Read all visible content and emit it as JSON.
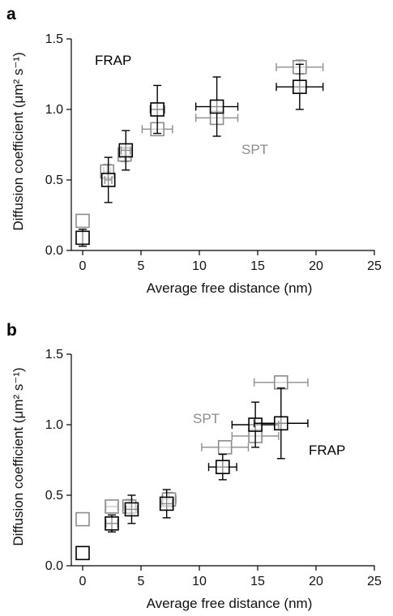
{
  "chart_data": [
    {
      "type": "scatter",
      "panel": "a",
      "xlabel": "Average free distance (nm)",
      "ylabel": "Diffusion coefficient (μm² s⁻¹)",
      "xlim": [
        0,
        25
      ],
      "ylim": [
        0.0,
        1.5
      ],
      "x_ticks": [
        "0",
        "5",
        "10",
        "15",
        "20",
        "25"
      ],
      "y_ticks": [
        "0.0",
        "0.5",
        "1.0",
        "1.5"
      ],
      "grid": false,
      "series": [
        {
          "name": "FRAP",
          "color": "#000000",
          "points": [
            {
              "x": 0.0,
              "y": 0.09,
              "yerr": 0.06,
              "xerr": 0.0
            },
            {
              "x": 2.2,
              "y": 0.5,
              "yerr": 0.16,
              "xerr": 0.3
            },
            {
              "x": 3.7,
              "y": 0.71,
              "yerr": 0.14,
              "xerr": 0.4
            },
            {
              "x": 6.4,
              "y": 1.0,
              "yerr": 0.17,
              "xerr": 0.6
            },
            {
              "x": 11.5,
              "y": 1.02,
              "yerr": 0.21,
              "xerr": 1.8
            },
            {
              "x": 18.6,
              "y": 1.16,
              "yerr": 0.16,
              "xerr": 2.0
            }
          ]
        },
        {
          "name": "SPT",
          "color": "#8c8c8c",
          "points": [
            {
              "x": 0.0,
              "y": 0.21,
              "yerr": 0.0,
              "xerr": 0.0
            },
            {
              "x": 2.1,
              "y": 0.56,
              "yerr": 0.05,
              "xerr": 0.3
            },
            {
              "x": 3.6,
              "y": 0.68,
              "yerr": 0.05,
              "xerr": 0.4
            },
            {
              "x": 6.4,
              "y": 0.86,
              "yerr": 0.0,
              "xerr": 1.3
            },
            {
              "x": 11.5,
              "y": 0.94,
              "yerr": 0.0,
              "xerr": 1.8
            },
            {
              "x": 18.6,
              "y": 1.3,
              "yerr": 0.05,
              "xerr": 2.0
            }
          ]
        }
      ],
      "annotations": [
        {
          "text": "FRAP",
          "color": "#000000"
        },
        {
          "text": "SPT",
          "color": "#8c8c8c"
        }
      ]
    },
    {
      "type": "scatter",
      "panel": "b",
      "xlabel": "Average free distance (nm)",
      "ylabel": "Diffusion coefficient (μm² s⁻¹)",
      "xlim": [
        0,
        25
      ],
      "ylim": [
        0.0,
        1.5
      ],
      "x_ticks": [
        "0",
        "5",
        "10",
        "15",
        "20",
        "25"
      ],
      "y_ticks": [
        "0.0",
        "0.5",
        "1.0",
        "1.5"
      ],
      "grid": false,
      "series": [
        {
          "name": "FRAP",
          "color": "#000000",
          "points": [
            {
              "x": 0.0,
              "y": 0.09,
              "yerr": 0.0,
              "xerr": 0.0
            },
            {
              "x": 2.5,
              "y": 0.3,
              "yerr": 0.06,
              "xerr": 0.5
            },
            {
              "x": 4.2,
              "y": 0.4,
              "yerr": 0.1,
              "xerr": 0.5
            },
            {
              "x": 7.2,
              "y": 0.44,
              "yerr": 0.1,
              "xerr": 0.5
            },
            {
              "x": 12.0,
              "y": 0.7,
              "yerr": 0.09,
              "xerr": 1.2
            },
            {
              "x": 14.8,
              "y": 1.0,
              "yerr": 0.16,
              "xerr": 2.0
            },
            {
              "x": 17.0,
              "y": 1.01,
              "yerr": 0.25,
              "xerr": 2.3
            }
          ]
        },
        {
          "name": "SPT",
          "color": "#8c8c8c",
          "points": [
            {
              "x": 0.0,
              "y": 0.33,
              "yerr": 0.0,
              "xerr": 0.0
            },
            {
              "x": 2.5,
              "y": 0.42,
              "yerr": 0.0,
              "xerr": 0.5
            },
            {
              "x": 4.0,
              "y": 0.42,
              "yerr": 0.05,
              "xerr": 0.5
            },
            {
              "x": 7.4,
              "y": 0.47,
              "yerr": 0.05,
              "xerr": 0.6
            },
            {
              "x": 12.2,
              "y": 0.84,
              "yerr": 0.0,
              "xerr": 2.0
            },
            {
              "x": 14.8,
              "y": 0.92,
              "yerr": 0.0,
              "xerr": 2.0
            },
            {
              "x": 17.0,
              "y": 1.3,
              "yerr": 0.0,
              "xerr": 2.3
            }
          ]
        }
      ],
      "annotations": [
        {
          "text": "SPT",
          "color": "#8c8c8c"
        },
        {
          "text": "FRAP",
          "color": "#000000"
        }
      ]
    }
  ]
}
